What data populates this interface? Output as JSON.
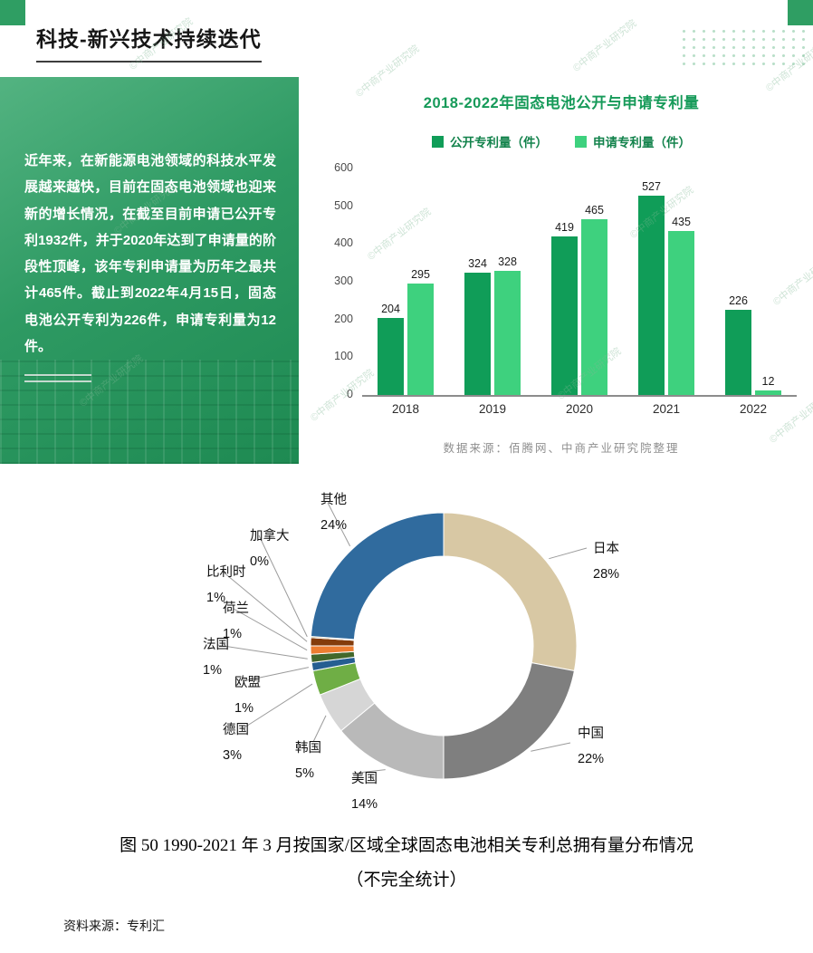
{
  "page": {
    "slide": {
      "title": "科技-新兴技术持续迭代",
      "panel_text": "近年来，在新能源电池领域的科技水平发展越来越快，目前在固态电池领域也迎来新的增长情况，在截至目前申请已公开专利1932件，并于2020年达到了申请量的阶段性顶峰，该年专利申请量为历年之最共计465件。截止到2022年4月15日，固态电池公开专利为226件，申请专利量为12件。",
      "watermark": "©中商产业研究院"
    },
    "caption_line1": "图  50 1990-2021 年 3 月按国家/区域全球固态电池相关专利总拥有量分布情况",
    "caption_line2": "（不完全统计）",
    "source_bottom": "资料来源：专利汇"
  },
  "chart_data": [
    {
      "type": "bar",
      "title": "2018-2022年固态电池公开与申请专利量",
      "categories": [
        "2018",
        "2019",
        "2020",
        "2021",
        "2022"
      ],
      "series": [
        {
          "name": "公开专利量（件）",
          "color": "#109d58",
          "values": [
            204,
            324,
            419,
            527,
            226
          ]
        },
        {
          "name": "申请专利量（件）",
          "color": "#3ed17e",
          "values": [
            295,
            328,
            465,
            435,
            12
          ]
        }
      ],
      "ylim": [
        0,
        600
      ],
      "yticks": [
        0,
        100,
        200,
        300,
        400,
        500,
        600
      ],
      "grid": false,
      "legend_position": "top",
      "source": "数据来源：佰腾网、中商产业研究院整理"
    },
    {
      "type": "pie",
      "donut": true,
      "title": "1990-2021年3月按国家/区域全球固态电池相关专利总拥有量分布",
      "labels": [
        "日本",
        "中国",
        "美国",
        "韩国",
        "德国",
        "欧盟",
        "法国",
        "荷兰",
        "比利时",
        "加拿大",
        "其他"
      ],
      "values": [
        28,
        22,
        14,
        5,
        3,
        1,
        1,
        1,
        1,
        0,
        24
      ],
      "unit": "%",
      "colors": [
        "#d8c8a4",
        "#7f7f7f",
        "#b9b9b9",
        "#d6d6d6",
        "#6fae45",
        "#255e91",
        "#43682b",
        "#ed7d31",
        "#843c0c",
        "#997300",
        "#306b9e"
      ],
      "legend_position": "callout-labels"
    }
  ]
}
